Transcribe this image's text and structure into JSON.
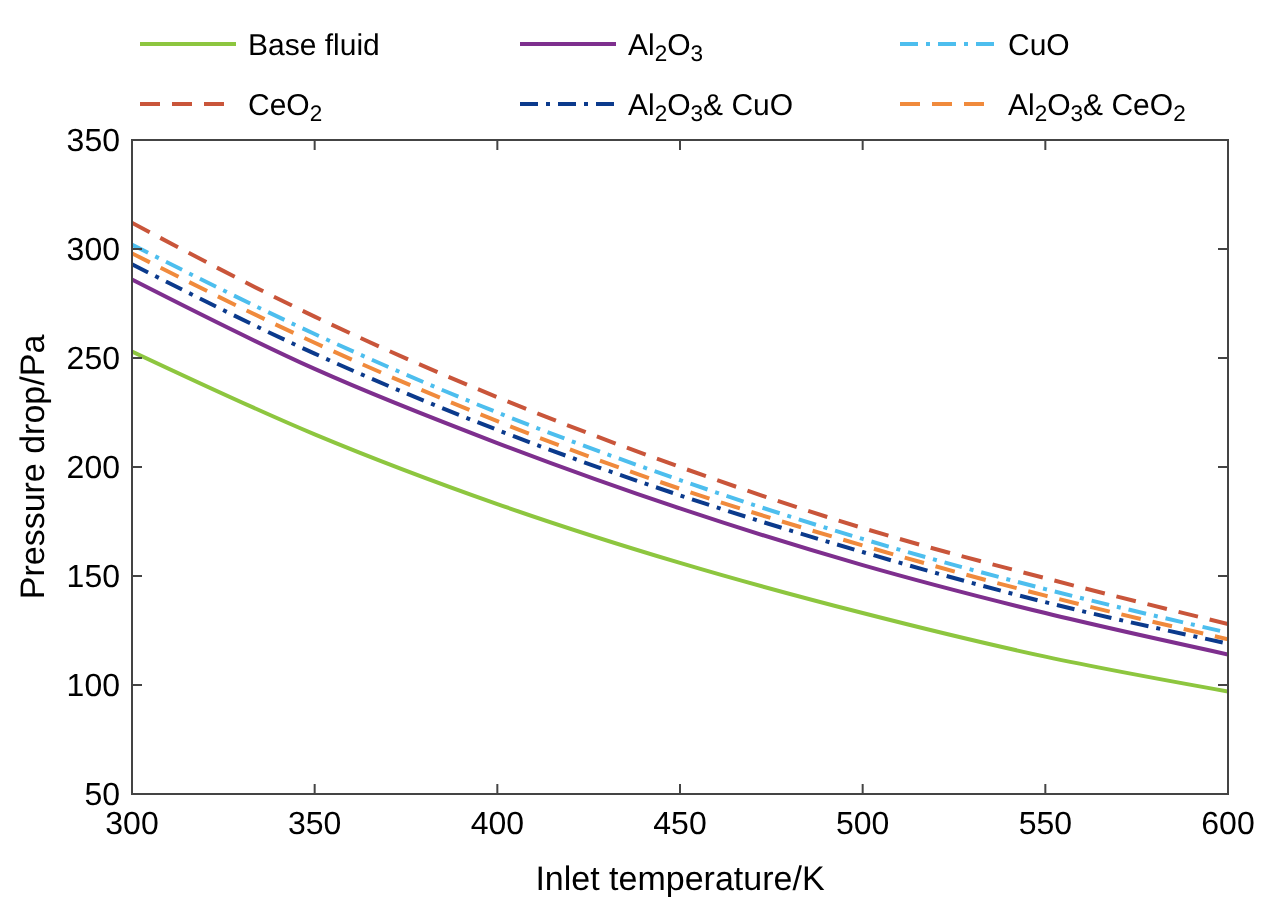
{
  "chart_data": {
    "type": "line",
    "xlabel": "Inlet temperature/K",
    "ylabel": "Pressure drop/Pa",
    "x": [
      300,
      350,
      400,
      450,
      500,
      550,
      600
    ],
    "xlim": [
      300,
      600
    ],
    "xticks": [
      300,
      350,
      400,
      450,
      500,
      550,
      600
    ],
    "ylim": [
      50,
      350
    ],
    "yticks": [
      50,
      100,
      150,
      200,
      250,
      300,
      350
    ],
    "legend": "top",
    "grid": false,
    "marker": "none",
    "series": [
      {
        "name": "Base fluid",
        "color": "#8dc63f",
        "line_style": "solid",
        "values": [
          253,
          215,
          183,
          156,
          133,
          113,
          97
        ]
      },
      {
        "name": "Al$_{2}$O$_{3}$",
        "color": "#7e2f8e",
        "line_style": "solid",
        "values": [
          286,
          245,
          211,
          181,
          155,
          133,
          114
        ]
      },
      {
        "name": "CuO",
        "color": "#4dbeee",
        "line_style": "dashdot",
        "values": [
          302,
          261,
          225,
          194,
          167,
          144,
          124
        ]
      },
      {
        "name": "CeO$_{2}$",
        "color": "#c9553a",
        "line_style": "dashed",
        "values": [
          312,
          269,
          232,
          200,
          172,
          149,
          128
        ]
      },
      {
        "name": "Al$_{2}$O$_{3}$& CuO",
        "color": "#0b3a8c",
        "line_style": "dashdot",
        "values": [
          293,
          252,
          217,
          187,
          161,
          138,
          119
        ]
      },
      {
        "name": "Al$_{2}$O$_{3}$& CeO$_{2}$",
        "color": "#f08a3c",
        "line_style": "dashed",
        "values": [
          298,
          257,
          221,
          190,
          164,
          141,
          121
        ]
      }
    ]
  }
}
